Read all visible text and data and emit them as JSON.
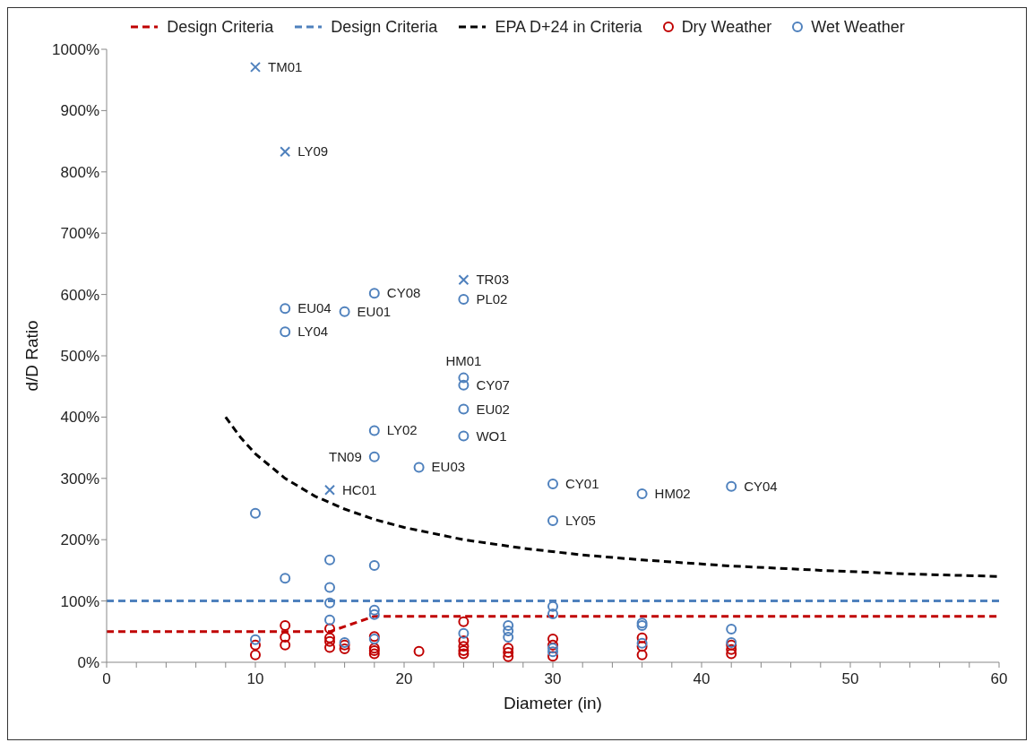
{
  "chart_data": {
    "type": "scatter",
    "xlabel": "Diameter (in)",
    "ylabel": "d/D Ratio",
    "xlim": [
      0,
      60
    ],
    "xticks": [
      0,
      {
        "value": 2,
        "label": null
      },
      {
        "value": 4,
        "label": null
      },
      {
        "value": 6,
        "label": null
      },
      {
        "value": 8,
        "label": null
      },
      10,
      {
        "value": 12,
        "label": null
      },
      {
        "value": 14,
        "label": null
      },
      {
        "value": 16,
        "label": null
      },
      {
        "value": 18,
        "label": null
      },
      20,
      {
        "value": 22,
        "label": null
      },
      {
        "value": 24,
        "label": null
      },
      {
        "value": 26,
        "label": null
      },
      {
        "value": 28,
        "label": null
      },
      30,
      {
        "value": 32,
        "label": null
      },
      {
        "value": 34,
        "label": null
      },
      {
        "value": 36,
        "label": null
      },
      {
        "value": 38,
        "label": null
      },
      40,
      {
        "value": 42,
        "label": null
      },
      {
        "value": 44,
        "label": null
      },
      {
        "value": 46,
        "label": null
      },
      {
        "value": 48,
        "label": null
      },
      50,
      {
        "value": 52,
        "label": null
      },
      {
        "value": 54,
        "label": null
      },
      {
        "value": 56,
        "label": null
      },
      {
        "value": 58,
        "label": null
      },
      60
    ],
    "ylim": [
      0,
      1000
    ],
    "yticks": [
      {
        "value": 0,
        "label": "0%"
      },
      {
        "value": 100,
        "label": "100%"
      },
      {
        "value": 200,
        "label": "200%"
      },
      {
        "value": 300,
        "label": "300%"
      },
      {
        "value": 400,
        "label": "400%"
      },
      {
        "value": 500,
        "label": "500%"
      },
      {
        "value": 600,
        "label": "600%"
      },
      {
        "value": 700,
        "label": "700%"
      },
      {
        "value": 800,
        "label": "800%"
      },
      {
        "value": 900,
        "label": "900%"
      },
      {
        "value": 1000,
        "label": "1000%"
      }
    ],
    "grid": false,
    "legend": "top",
    "series": [
      {
        "name": "Design Criteria",
        "type": "line",
        "color": "#c00000",
        "line_style": "dashed",
        "marker": "none",
        "x": [
          0,
          15,
          18,
          60
        ],
        "values": [
          50,
          50,
          75,
          75
        ]
      },
      {
        "name": "Design Criteria",
        "type": "line",
        "color": "#4f81bd",
        "line_style": "dashed",
        "marker": "none",
        "x": [
          0,
          60
        ],
        "values": [
          100,
          100
        ]
      },
      {
        "name": "EPA D+24 in Criteria",
        "type": "line",
        "color": "#000000",
        "line_style": "dashed",
        "marker": "none",
        "x": [
          8,
          9,
          10,
          12,
          14,
          16,
          18,
          20,
          24,
          28,
          32,
          36,
          42,
          48,
          54,
          60
        ],
        "values": [
          400,
          367,
          340,
          300,
          271,
          250,
          233,
          220,
          200,
          186,
          175,
          167,
          157,
          150,
          144,
          140
        ]
      },
      {
        "name": "Dry Weather",
        "color": "#c00000",
        "marker": "circle",
        "x": [
          10,
          10,
          12,
          12,
          12,
          15,
          15,
          15,
          15,
          16,
          16,
          18,
          18,
          18,
          18,
          21,
          24,
          24,
          24,
          24,
          24,
          27,
          27,
          27,
          30,
          30,
          30,
          36,
          36,
          36,
          42,
          42,
          42
        ],
        "values": [
          28,
          12,
          60,
          41,
          28,
          55,
          40,
          34,
          24,
          28,
          22,
          42,
          23,
          19,
          14,
          18,
          66,
          35,
          26,
          19,
          14,
          23,
          16,
          9,
          38,
          28,
          10,
          40,
          26,
          12,
          28,
          21,
          14
        ]
      },
      {
        "name": "Wet Weather",
        "color": "#4f81bd",
        "marker": "circle",
        "x": [
          10,
          10,
          12,
          12,
          12,
          15,
          15,
          15,
          15,
          16,
          16,
          18,
          18,
          18,
          18,
          18,
          18,
          18,
          21,
          24,
          24,
          24,
          24,
          24,
          24,
          27,
          27,
          27,
          30,
          30,
          30,
          30,
          30,
          30,
          36,
          36,
          36,
          36,
          42,
          42,
          42
        ],
        "values": [
          243,
          37,
          577,
          539,
          137,
          167,
          122,
          97,
          69,
          572,
          32,
          602,
          378,
          335,
          158,
          85,
          78,
          38,
          318,
          592,
          464,
          452,
          413,
          369,
          47,
          60,
          51,
          41,
          291,
          231,
          91,
          79,
          23,
          17,
          275,
          64,
          60,
          31,
          287,
          54,
          32
        ]
      },
      {
        "color": "#4f81bd",
        "marker": "cross",
        "x": [
          10,
          12,
          24,
          15
        ],
        "values": [
          971,
          833,
          624,
          281
        ]
      }
    ],
    "annotations": [
      {
        "text": "TM01",
        "x": 10,
        "y": 971
      },
      {
        "text": "LY09",
        "x": 12,
        "y": 833
      },
      {
        "text": "TR03",
        "x": 24,
        "y": 624
      },
      {
        "text": "HC01",
        "x": 15,
        "y": 281
      },
      {
        "text": "EU04",
        "x": 12,
        "y": 577
      },
      {
        "text": "LY04",
        "x": 12,
        "y": 539
      },
      {
        "text": "CY08",
        "x": 18,
        "y": 602
      },
      {
        "text": "EU01",
        "x": 16,
        "y": 572
      },
      {
        "text": "PL02",
        "x": 24,
        "y": 592
      },
      {
        "text": "HM01",
        "x": 24,
        "y": 464
      },
      {
        "text": "CY07",
        "x": 24,
        "y": 452
      },
      {
        "text": "EU02",
        "x": 24,
        "y": 413
      },
      {
        "text": "WO1",
        "x": 24,
        "y": 369
      },
      {
        "text": "LY02",
        "x": 18,
        "y": 378
      },
      {
        "text": "TN09",
        "x": 18,
        "y": 335
      },
      {
        "text": "EU03",
        "x": 21,
        "y": 318
      },
      {
        "text": "CY01",
        "x": 30,
        "y": 291
      },
      {
        "text": "LY05",
        "x": 30,
        "y": 231
      },
      {
        "text": "HM02",
        "x": 36,
        "y": 275
      },
      {
        "text": "CY04",
        "x": 42,
        "y": 287
      }
    ]
  }
}
